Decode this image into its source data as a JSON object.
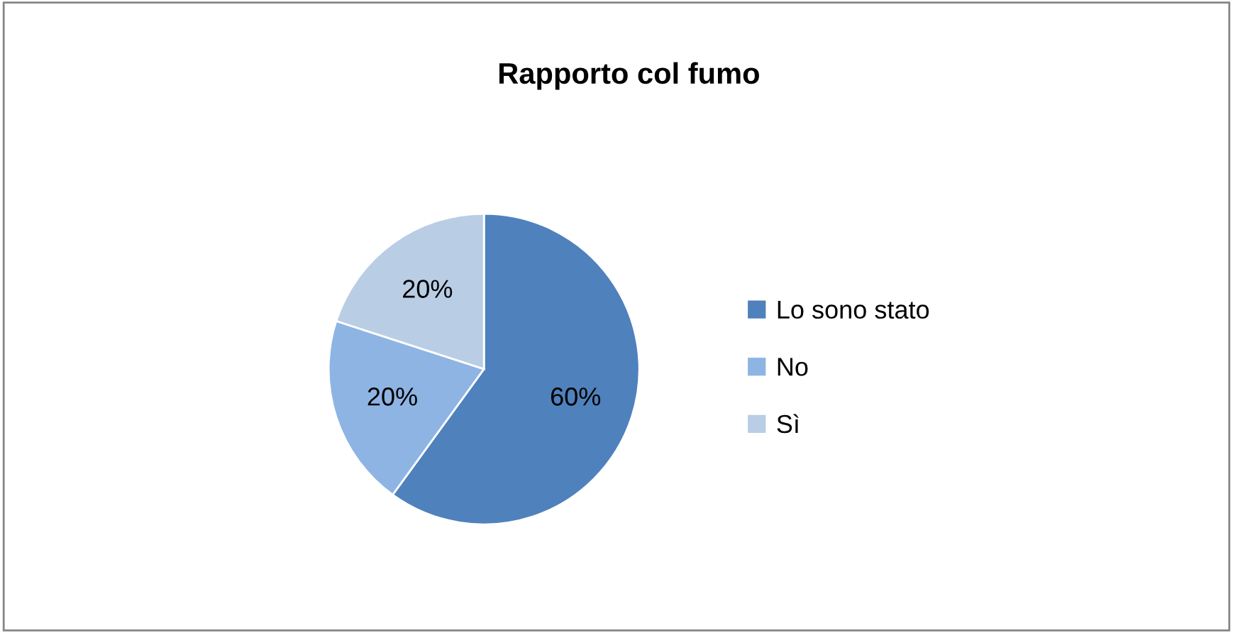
{
  "chart_data": {
    "type": "pie",
    "title": "Rapporto col fumo",
    "categories": [
      "Lo sono stato",
      "No",
      "Sì"
    ],
    "values": [
      60,
      20,
      20
    ],
    "colors": [
      "#4f81bd",
      "#8eb4e3",
      "#b9cde5"
    ],
    "value_labels": [
      "60%",
      "20%",
      "20%"
    ],
    "legend": "right"
  }
}
